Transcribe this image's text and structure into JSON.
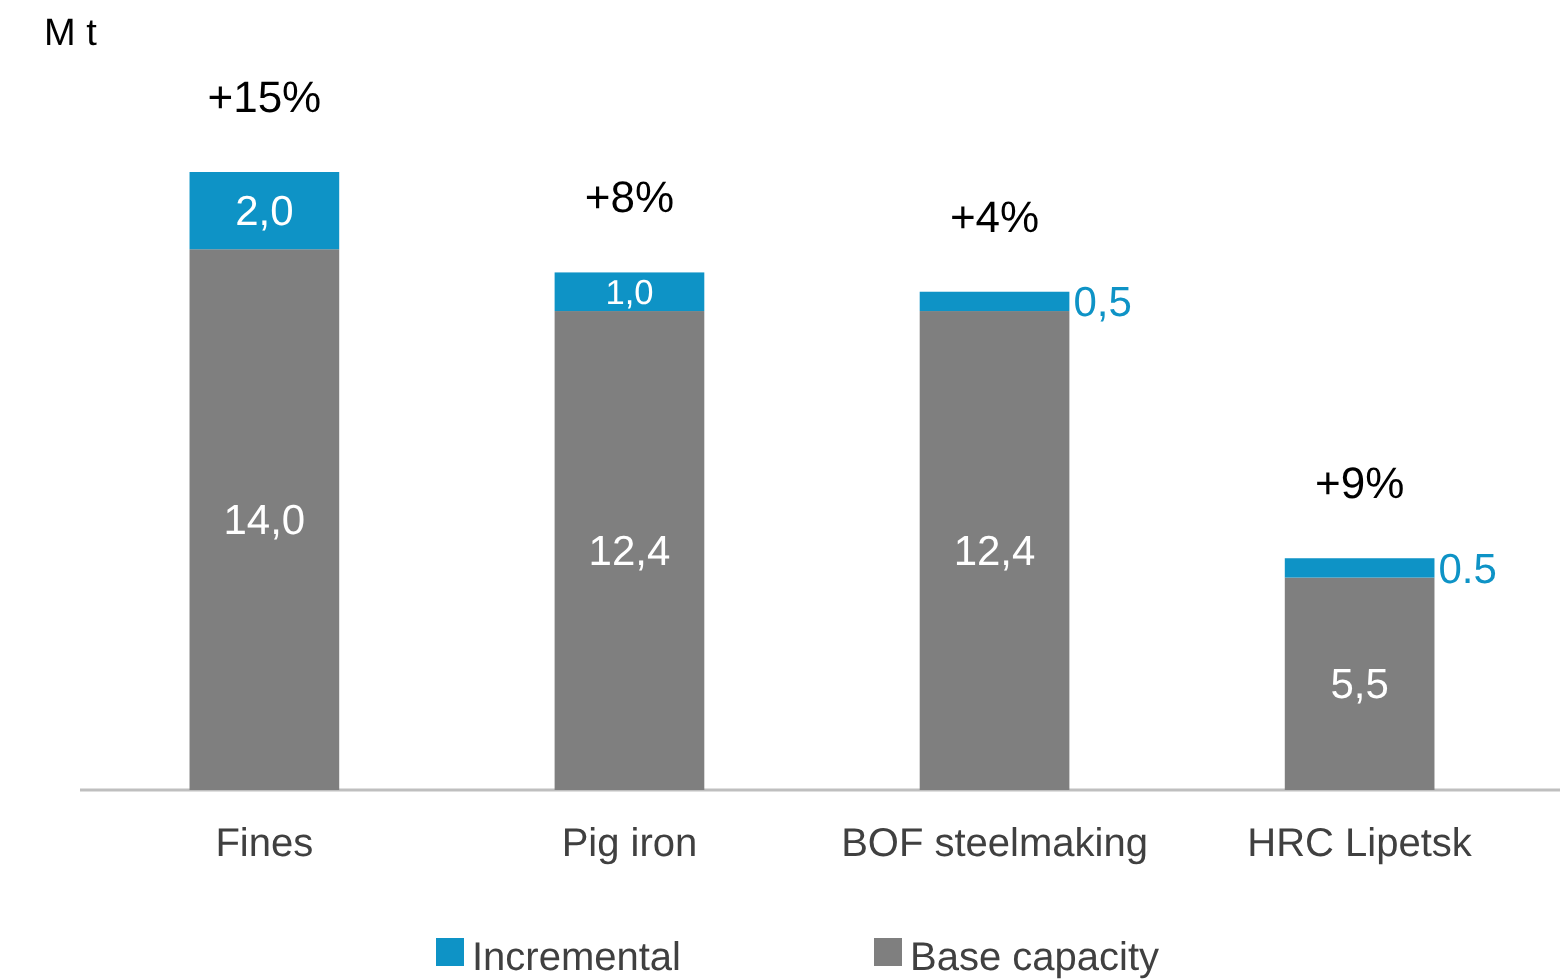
{
  "chart_data": {
    "type": "bar",
    "ylabel": "M t",
    "stacked": true,
    "categories": [
      "Fines",
      "Pig iron",
      "BOF steelmaking",
      "HRC Lipetsk"
    ],
    "series": [
      {
        "name": "Base capacity",
        "color": "#7f7f7f",
        "values": [
          14.0,
          12.4,
          12.4,
          5.5
        ],
        "value_labels": [
          "14,0",
          "12,4",
          "12,4",
          "5,5"
        ]
      },
      {
        "name": "Incremental",
        "color": "#0e93c6",
        "values": [
          2.0,
          1.0,
          0.5,
          0.5
        ],
        "value_labels": [
          "2,0",
          "1,0",
          "0,5",
          "0.5"
        ]
      }
    ],
    "annotations": [
      {
        "text": "+15%",
        "x": "Fines",
        "y": 16.0
      },
      {
        "text": "+8%",
        "x": "Pig iron",
        "y": 13.4
      },
      {
        "text": "+4%",
        "x": "BOF steelmaking",
        "y": 12.9
      },
      {
        "text": "+9%",
        "x": "HRC Lipetsk",
        "y": 6.0
      }
    ],
    "legend": "bottom"
  }
}
